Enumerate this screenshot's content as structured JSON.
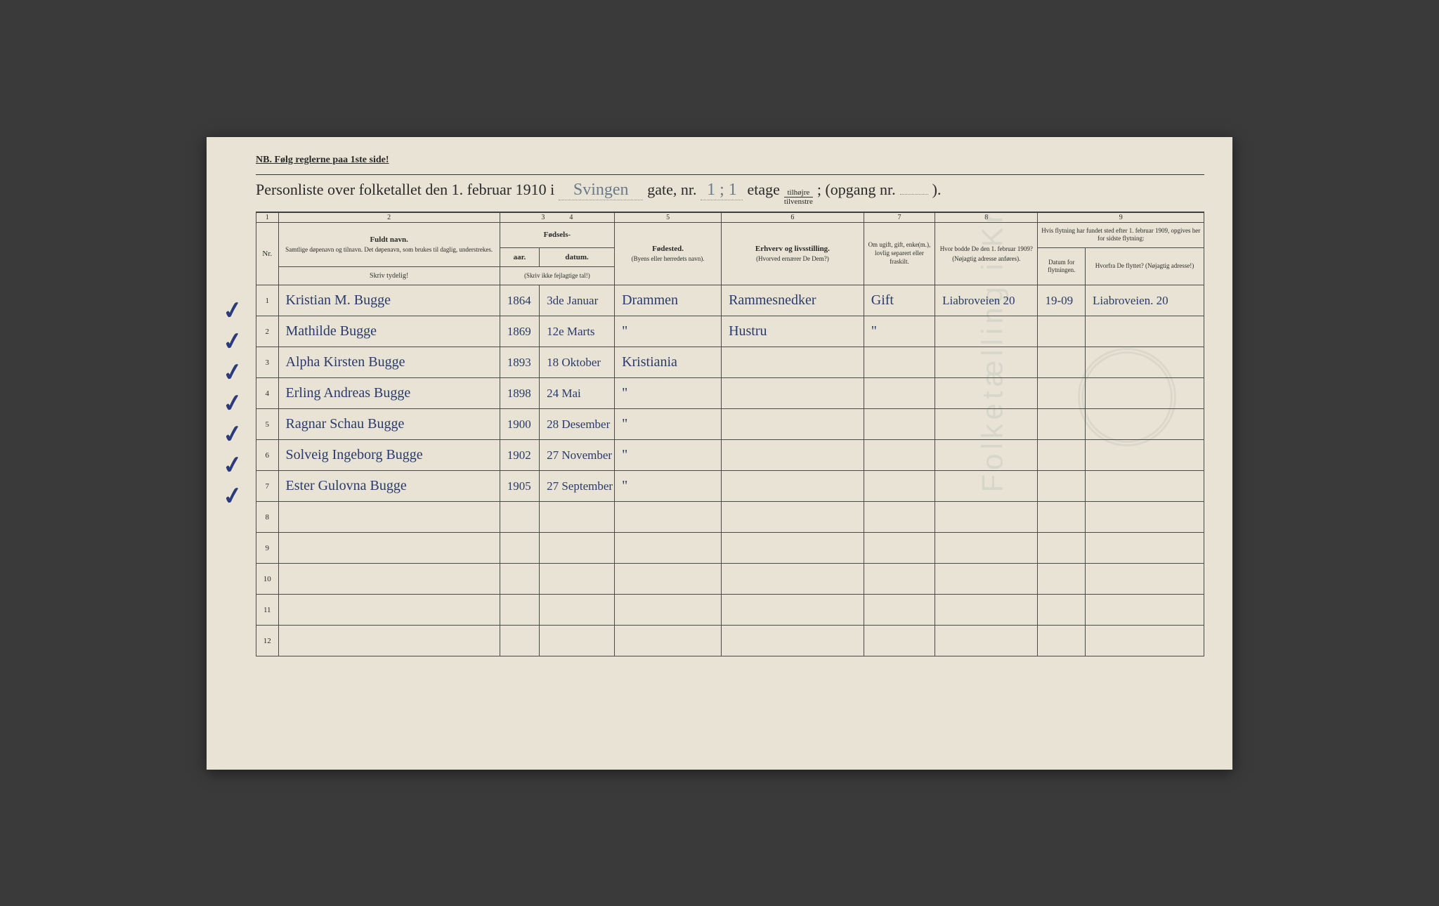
{
  "nb": "NB.  Følg reglerne paa 1ste side!",
  "title": {
    "prefix": "Personliste over folketallet den 1. februar 1910 i",
    "street": "Svingen",
    "gate_label": "gate, nr.",
    "gate_nr": "1 ; 1",
    "etage_label": "etage",
    "frac_top": "tilhøjre",
    "frac_bot": "tilvenstre",
    "opgang": "; (opgang nr.",
    "opgang_val": "",
    "close": ")."
  },
  "colnums": [
    "1",
    "2",
    "3",
    "4",
    "5",
    "6",
    "7",
    "8",
    "9"
  ],
  "headers": {
    "nr": "Nr.",
    "name_bold": "Fuldt navn.",
    "name_sub": "Samtlige døpenavn og tilnavn. Det døpenavn, som brukes til daglig, understrekes.",
    "name_note": "Skriv tydelig!",
    "fods": "Fødsels-",
    "aar": "aar.",
    "datum": "datum.",
    "fods_note": "(Skriv ikke fejlagtige tal!)",
    "place_bold": "Fødested.",
    "place_sub": "(Byens eller herredets navn).",
    "erhverv_bold": "Erhverv og livsstilling.",
    "erhverv_sub": "(Hvorved ernærer De Dem?)",
    "ugift": "Om ugift, gift, enke(m.), lovlig separert eller fraskilt.",
    "bodde": "Hvor bodde De den 1. februar 1909?",
    "bodde_sub": "(Nøjagtig adresse anføres).",
    "flyt_top": "Hvis flytning har fundet sted efter 1. februar 1909, opgives her for sidste flytning:",
    "flyt_dat": "Datum for flytningen.",
    "flyt_hvor": "Hvorfra De flyttet? (Nøjagtig adresse!)"
  },
  "rows": [
    {
      "n": "1",
      "check": "✓",
      "name": "Kristian M. Bugge",
      "year": "1864",
      "date": "3de Januar",
      "place": "Drammen",
      "occ": "Rammesnedker",
      "stat": "Gift",
      "addr": "Liabroveien 20",
      "fdat": "19-09",
      "fhvor": "Liabroveien. 20"
    },
    {
      "n": "2",
      "check": "✓",
      "name": "Mathilde Bugge",
      "year": "1869",
      "date": "12e Marts",
      "place": "\"",
      "occ": "Hustru",
      "stat": "\"",
      "addr": "",
      "fdat": "",
      "fhvor": ""
    },
    {
      "n": "3",
      "check": "✓",
      "name": "Alpha Kirsten Bugge",
      "year": "1893",
      "date": "18 Oktober",
      "place": "Kristiania",
      "occ": "",
      "stat": "",
      "addr": "",
      "fdat": "",
      "fhvor": ""
    },
    {
      "n": "4",
      "check": "✓",
      "name": "Erling Andreas Bugge",
      "year": "1898",
      "date": "24 Mai",
      "place": "\"",
      "occ": "",
      "stat": "",
      "addr": "",
      "fdat": "",
      "fhvor": ""
    },
    {
      "n": "5",
      "check": "✓",
      "name": "Ragnar Schau Bugge",
      "year": "1900",
      "date": "28 Desember",
      "place": "\"",
      "occ": "",
      "stat": "",
      "addr": "",
      "fdat": "",
      "fhvor": ""
    },
    {
      "n": "6",
      "check": "✓",
      "name": "Solveig Ingeborg Bugge",
      "year": "1902",
      "date": "27 November",
      "place": "\"",
      "occ": "",
      "stat": "",
      "addr": "",
      "fdat": "",
      "fhvor": ""
    },
    {
      "n": "7",
      "check": "✓",
      "name": "Ester Gulovna Bugge",
      "year": "1905",
      "date": "27 September",
      "place": "\"",
      "occ": "",
      "stat": "",
      "addr": "",
      "fdat": "",
      "fhvor": ""
    },
    {
      "n": "8",
      "check": "",
      "name": "",
      "year": "",
      "date": "",
      "place": "",
      "occ": "",
      "stat": "",
      "addr": "",
      "fdat": "",
      "fhvor": ""
    },
    {
      "n": "9",
      "check": "",
      "name": "",
      "year": "",
      "date": "",
      "place": "",
      "occ": "",
      "stat": "",
      "addr": "",
      "fdat": "",
      "fhvor": ""
    },
    {
      "n": "10",
      "check": "",
      "name": "",
      "year": "",
      "date": "",
      "place": "",
      "occ": "",
      "stat": "",
      "addr": "",
      "fdat": "",
      "fhvor": ""
    },
    {
      "n": "11",
      "check": "",
      "name": "",
      "year": "",
      "date": "",
      "place": "",
      "occ": "",
      "stat": "",
      "addr": "",
      "fdat": "",
      "fhvor": ""
    },
    {
      "n": "12",
      "check": "",
      "name": "",
      "year": "",
      "date": "",
      "place": "",
      "occ": "",
      "stat": "",
      "addr": "",
      "fdat": "",
      "fhvor": ""
    }
  ],
  "col_widths": {
    "nr": "28px",
    "name": "280px",
    "year": "50px",
    "date": "95px",
    "place": "135px",
    "occ": "180px",
    "stat": "90px",
    "addr": "130px",
    "fdat": "60px",
    "fhvor": "150px"
  },
  "colors": {
    "paper": "#e8e3d4",
    "ink_print": "#2a2a2a",
    "ink_hand": "#2a3a6a",
    "border": "#4a4a4a"
  },
  "watermark": "Folketælling i Kr"
}
